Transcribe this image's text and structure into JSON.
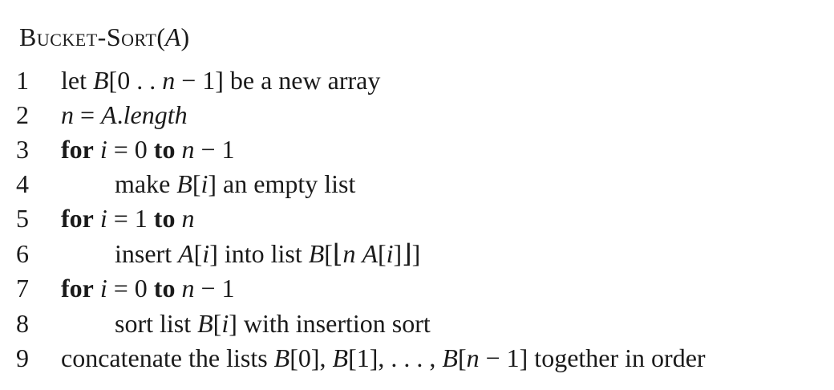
{
  "algorithm": {
    "name": "Bucket-Sort",
    "param": "A"
  },
  "lines": [
    {
      "num": "1"
    },
    {
      "num": "2"
    },
    {
      "num": "3"
    },
    {
      "num": "4"
    },
    {
      "num": "5"
    },
    {
      "num": "6"
    },
    {
      "num": "7"
    },
    {
      "num": "8"
    },
    {
      "num": "9"
    }
  ],
  "tokens": {
    "let": "let",
    "be_new_array": "be a new array",
    "length": "length",
    "for": "for",
    "to": "to",
    "make": "make",
    "empty_list": "an empty list",
    "insert": "insert",
    "into_list": "into list",
    "sort_list": "sort list",
    "with_insertion_sort": "with insertion sort",
    "concatenate": "concatenate the lists",
    "together": "together in order",
    "ellipsis": ". . . ,"
  }
}
